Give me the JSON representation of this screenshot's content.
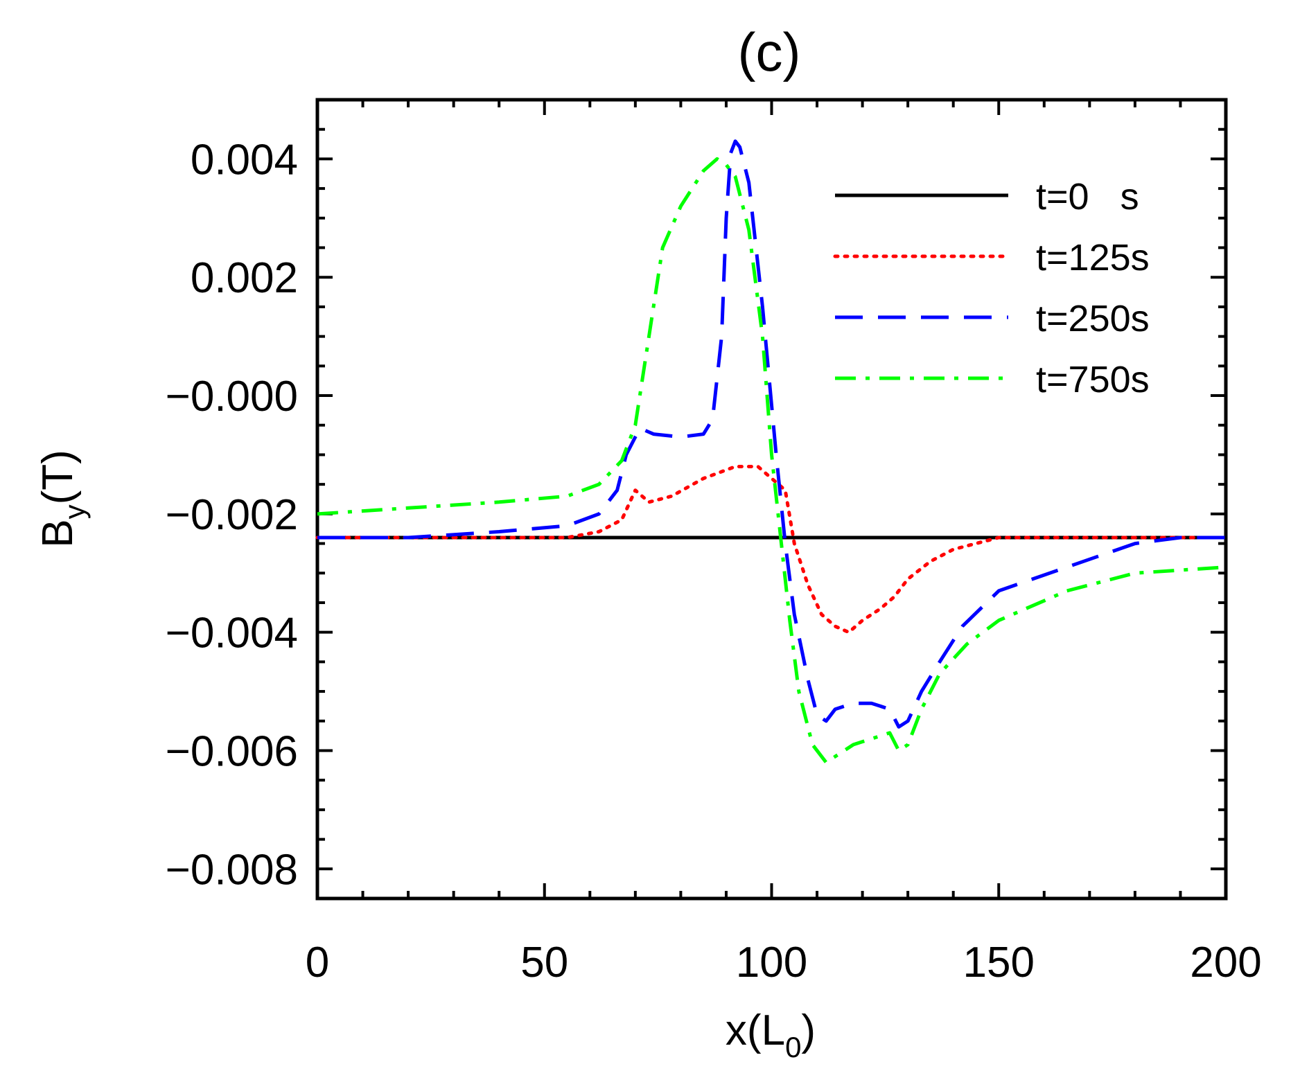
{
  "chart_data": {
    "type": "line",
    "title": "(c)",
    "xlabel": "x(L",
    "xlabel_subscript": "0",
    "xlabel_suffix": ")",
    "ylabel": "B",
    "ylabel_subscript": "y",
    "ylabel_suffix": "(T)",
    "xlim": [
      0,
      200
    ],
    "ylim": [
      -0.0085,
      0.005
    ],
    "x_ticks": [
      0,
      50,
      100,
      150,
      200
    ],
    "x_tick_labels": [
      "0",
      "50",
      "100",
      "150",
      "200"
    ],
    "y_ticks": [
      0.004,
      0.002,
      0.0,
      -0.002,
      -0.004,
      -0.006,
      -0.008
    ],
    "y_tick_labels": [
      "0.004",
      "0.002",
      "−0.000",
      "−0.002",
      "−0.004",
      "−0.006",
      "−0.008"
    ],
    "grid": false,
    "legend_position": "top-right",
    "series": [
      {
        "name": "t=0   s",
        "color": "#000000",
        "style": "solid",
        "points": [
          [
            0,
            -0.0024
          ],
          [
            200,
            -0.0024
          ]
        ]
      },
      {
        "name": "t=125s",
        "color": "#ff0000",
        "style": "dotted",
        "points": [
          [
            0,
            -0.0024
          ],
          [
            55,
            -0.0024
          ],
          [
            62,
            -0.0023
          ],
          [
            67,
            -0.0021
          ],
          [
            70,
            -0.0016
          ],
          [
            73,
            -0.0018
          ],
          [
            78,
            -0.0017
          ],
          [
            85,
            -0.0014
          ],
          [
            92,
            -0.0012
          ],
          [
            97,
            -0.0012
          ],
          [
            100,
            -0.0014
          ],
          [
            103,
            -0.0016
          ],
          [
            105,
            -0.0025
          ],
          [
            108,
            -0.0032
          ],
          [
            111,
            -0.0037
          ],
          [
            114,
            -0.0039
          ],
          [
            117,
            -0.004
          ],
          [
            120,
            -0.0038
          ],
          [
            124,
            -0.0036
          ],
          [
            127,
            -0.0034
          ],
          [
            130,
            -0.0031
          ],
          [
            135,
            -0.0028
          ],
          [
            140,
            -0.0026
          ],
          [
            150,
            -0.0024
          ],
          [
            200,
            -0.0024
          ]
        ]
      },
      {
        "name": "t=250s",
        "color": "#0000ff",
        "style": "dashed",
        "points": [
          [
            0,
            -0.0024
          ],
          [
            20,
            -0.0024
          ],
          [
            40,
            -0.0023
          ],
          [
            55,
            -0.0022
          ],
          [
            62,
            -0.002
          ],
          [
            66,
            -0.0016
          ],
          [
            68,
            -0.001
          ],
          [
            71,
            -0.00055
          ],
          [
            74,
            -0.00065
          ],
          [
            80,
            -0.0007
          ],
          [
            85,
            -0.00065
          ],
          [
            87,
            -0.0004
          ],
          [
            89,
            0.001
          ],
          [
            90,
            0.003
          ],
          [
            91,
            0.0041
          ],
          [
            92,
            0.0043
          ],
          [
            93,
            0.0042
          ],
          [
            95,
            0.0036
          ],
          [
            98,
            0.0015
          ],
          [
            101,
            -0.001
          ],
          [
            103,
            -0.0025
          ],
          [
            105,
            -0.0037
          ],
          [
            108,
            -0.0048
          ],
          [
            110,
            -0.0054
          ],
          [
            112,
            -0.0055
          ],
          [
            114,
            -0.0053
          ],
          [
            118,
            -0.0052
          ],
          [
            122,
            -0.0052
          ],
          [
            126,
            -0.0053
          ],
          [
            128,
            -0.0056
          ],
          [
            130,
            -0.0055
          ],
          [
            133,
            -0.005
          ],
          [
            137,
            -0.0045
          ],
          [
            142,
            -0.0039
          ],
          [
            150,
            -0.0033
          ],
          [
            165,
            -0.0029
          ],
          [
            180,
            -0.0025
          ],
          [
            190,
            -0.0024
          ],
          [
            200,
            -0.0024
          ]
        ]
      },
      {
        "name": "t=750s",
        "color": "#00ff00",
        "style": "dashdot",
        "points": [
          [
            0,
            -0.002
          ],
          [
            20,
            -0.0019
          ],
          [
            40,
            -0.0018
          ],
          [
            55,
            -0.0017
          ],
          [
            62,
            -0.0015
          ],
          [
            67,
            -0.0011
          ],
          [
            70,
            -0.0005
          ],
          [
            73,
            0.001
          ],
          [
            76,
            0.0025
          ],
          [
            80,
            0.0032
          ],
          [
            85,
            0.0038
          ],
          [
            88,
            0.004
          ],
          [
            90,
            0.0039
          ],
          [
            92,
            0.0037
          ],
          [
            95,
            0.0028
          ],
          [
            98,
            0.001
          ],
          [
            100,
            -0.001
          ],
          [
            102,
            -0.0024
          ],
          [
            104,
            -0.0038
          ],
          [
            106,
            -0.005
          ],
          [
            109,
            -0.0059
          ],
          [
            112,
            -0.0062
          ],
          [
            114,
            -0.0061
          ],
          [
            118,
            -0.0059
          ],
          [
            122,
            -0.0058
          ],
          [
            126,
            -0.0057
          ],
          [
            128,
            -0.006
          ],
          [
            130,
            -0.0059
          ],
          [
            133,
            -0.0053
          ],
          [
            137,
            -0.0047
          ],
          [
            143,
            -0.0042
          ],
          [
            150,
            -0.0038
          ],
          [
            165,
            -0.0033
          ],
          [
            180,
            -0.003
          ],
          [
            200,
            -0.0029
          ]
        ]
      }
    ]
  }
}
